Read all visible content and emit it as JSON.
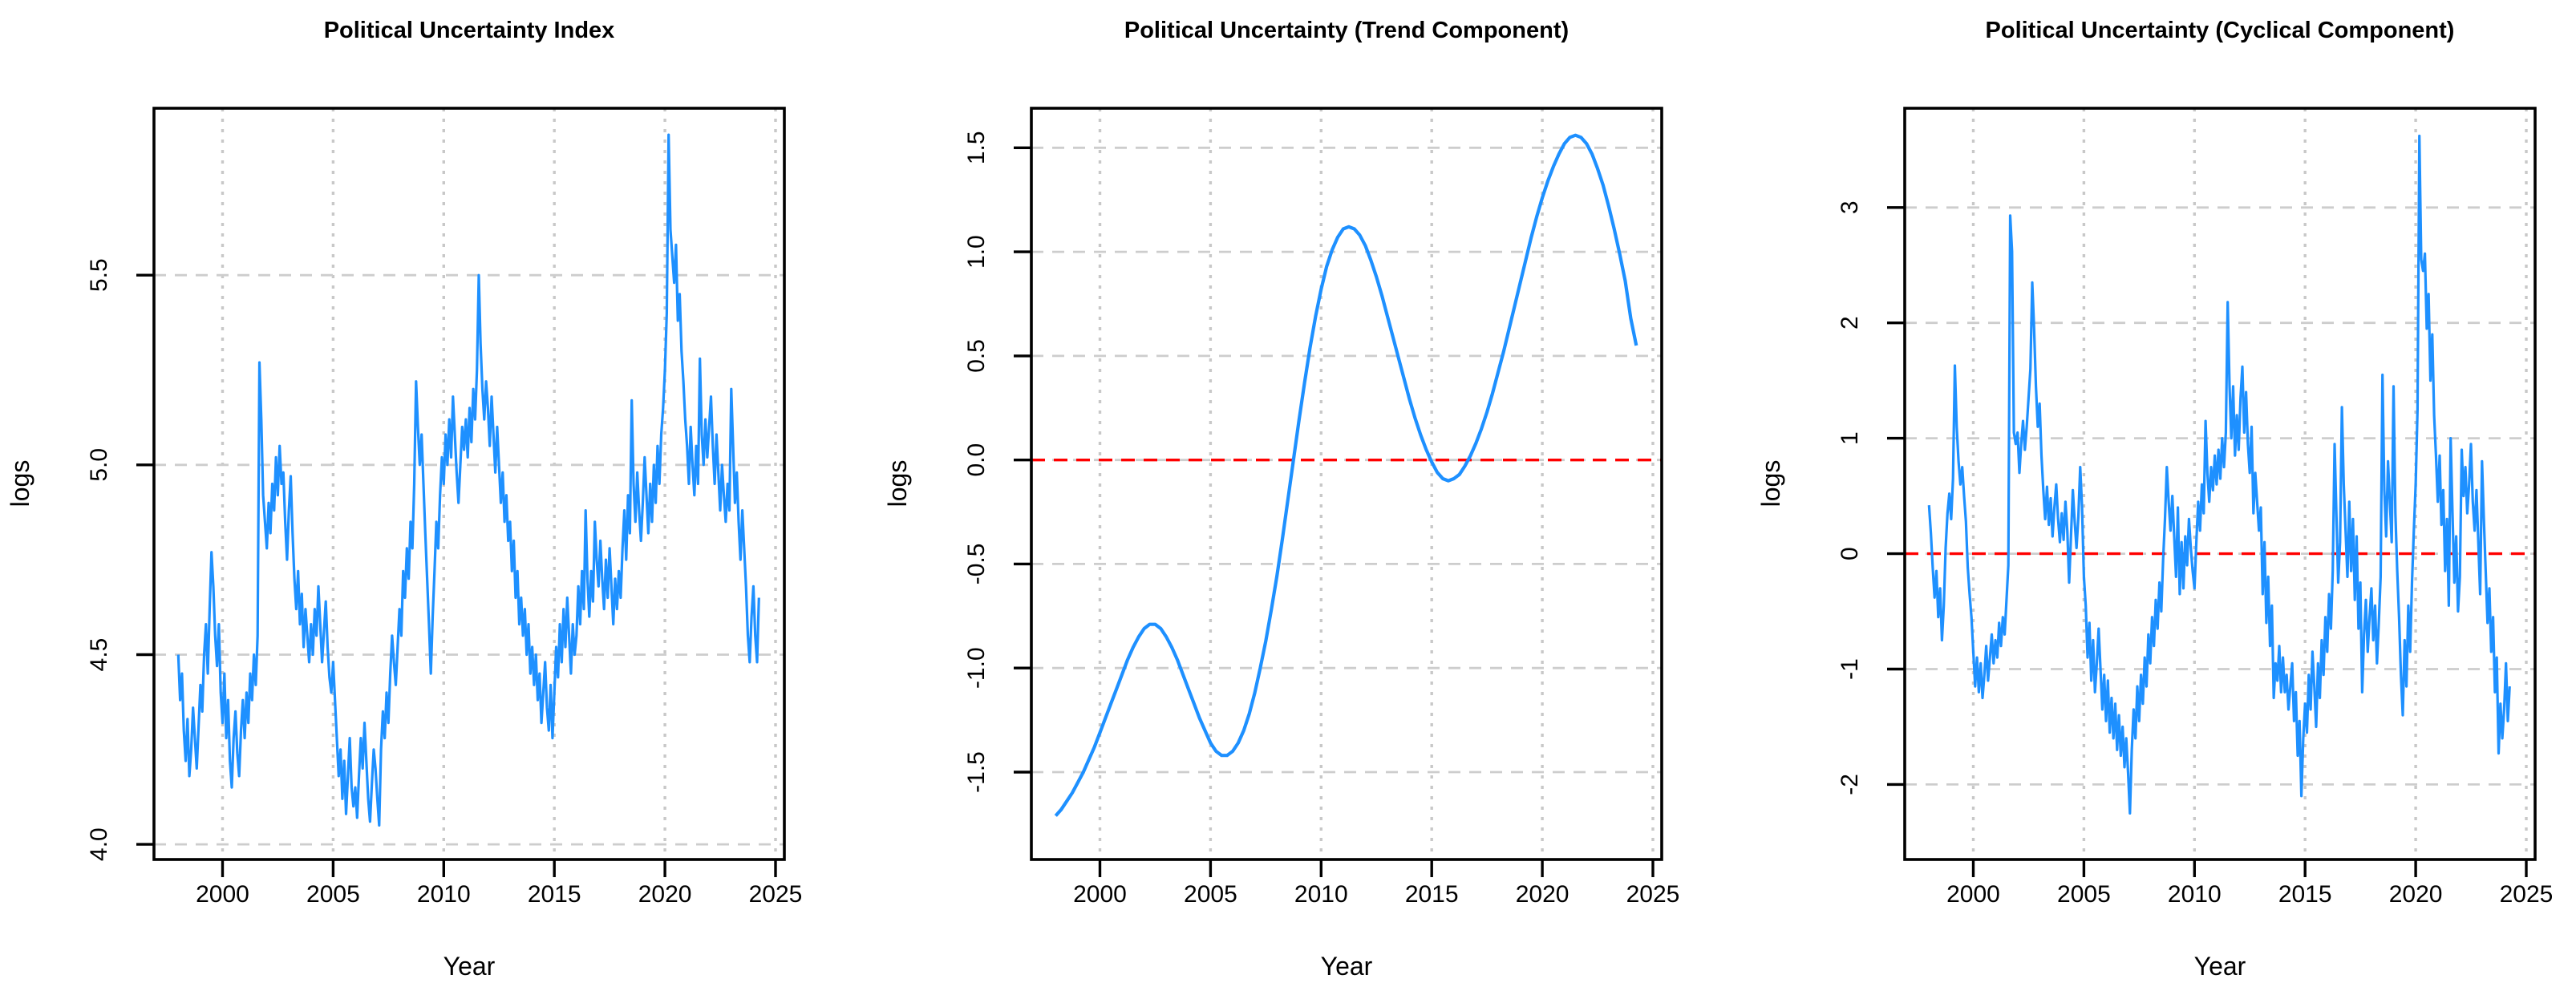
{
  "figure": {
    "background": "#ffffff",
    "description_titles": [
      "Political Uncertainty Index",
      "Political Uncertainty (Trend Component)",
      "Political Uncertainty (Cyclical Component)"
    ]
  },
  "chart_data": [
    {
      "type": "line",
      "title": "Political Uncertainty Index",
      "xlabel": "Year",
      "ylabel": "logs",
      "x_ticks": [
        "2000",
        "2005",
        "2010",
        "2015",
        "2020",
        "2025"
      ],
      "y_ticks": [
        "4.0",
        "4.5",
        "5.0",
        "5.5"
      ],
      "xlim": [
        1996.9,
        2025.4
      ],
      "ylim": [
        3.96,
        5.94
      ],
      "grid": true,
      "legend": "none",
      "line_color": "#1E90FF",
      "zero_line": {
        "show": false,
        "color": "#ff0000"
      },
      "series": [
        {
          "id": "index",
          "x_start": 1998.0,
          "x_step": 0.0833333,
          "line_width": 3.2,
          "values": [
            4.5,
            4.38,
            4.45,
            4.3,
            4.22,
            4.33,
            4.18,
            4.25,
            4.36,
            4.28,
            4.2,
            4.31,
            4.42,
            4.35,
            4.5,
            4.58,
            4.45,
            4.62,
            4.77,
            4.68,
            4.55,
            4.47,
            4.58,
            4.4,
            4.32,
            4.45,
            4.28,
            4.38,
            4.22,
            4.15,
            4.28,
            4.35,
            4.24,
            4.18,
            4.3,
            4.38,
            4.28,
            4.4,
            4.32,
            4.45,
            4.38,
            4.5,
            4.42,
            4.55,
            5.27,
            5.12,
            4.92,
            4.85,
            4.78,
            4.9,
            4.82,
            4.95,
            4.88,
            5.02,
            4.92,
            5.05,
            4.95,
            4.98,
            4.85,
            4.75,
            4.88,
            4.97,
            4.82,
            4.7,
            4.62,
            4.72,
            4.58,
            4.66,
            4.52,
            4.62,
            4.55,
            4.48,
            4.58,
            4.5,
            4.62,
            4.55,
            4.68,
            4.58,
            4.48,
            4.56,
            4.64,
            4.52,
            4.44,
            4.4,
            4.48,
            4.38,
            4.28,
            4.18,
            4.25,
            4.12,
            4.22,
            4.08,
            4.18,
            4.28,
            4.15,
            4.1,
            4.15,
            4.07,
            4.18,
            4.28,
            4.2,
            4.32,
            4.22,
            4.12,
            4.06,
            4.16,
            4.25,
            4.2,
            4.12,
            4.05,
            4.25,
            4.35,
            4.28,
            4.4,
            4.32,
            4.45,
            4.55,
            4.48,
            4.42,
            4.52,
            4.62,
            4.55,
            4.72,
            4.65,
            4.78,
            4.7,
            4.85,
            4.78,
            4.95,
            5.22,
            5.1,
            5.0,
            5.08,
            4.95,
            4.82,
            4.7,
            4.58,
            4.45,
            4.6,
            4.72,
            4.85,
            4.78,
            4.92,
            5.02,
            4.95,
            5.08,
            5.0,
            5.12,
            5.02,
            5.18,
            5.08,
            4.98,
            4.9,
            5.0,
            5.1,
            5.04,
            5.12,
            5.02,
            5.15,
            5.06,
            5.2,
            5.12,
            5.25,
            5.5,
            5.32,
            5.2,
            5.12,
            5.22,
            5.15,
            5.05,
            5.18,
            5.08,
            4.98,
            5.1,
            5.0,
            4.9,
            4.98,
            4.85,
            4.92,
            4.8,
            4.85,
            4.72,
            4.8,
            4.65,
            4.72,
            4.58,
            4.65,
            4.55,
            4.62,
            4.5,
            4.58,
            4.45,
            4.52,
            4.42,
            4.5,
            4.38,
            4.45,
            4.32,
            4.4,
            4.48,
            4.36,
            4.3,
            4.42,
            4.28,
            4.4,
            4.52,
            4.44,
            4.58,
            4.48,
            4.62,
            4.52,
            4.65,
            4.55,
            4.45,
            4.58,
            4.5,
            4.55,
            4.68,
            4.58,
            4.72,
            4.62,
            4.88,
            4.7,
            4.6,
            4.72,
            4.64,
            4.85,
            4.75,
            4.68,
            4.8,
            4.7,
            4.62,
            4.75,
            4.65,
            4.78,
            4.68,
            4.58,
            4.7,
            4.62,
            4.72,
            4.65,
            4.78,
            4.88,
            4.75,
            4.92,
            4.82,
            5.17,
            4.95,
            4.85,
            4.98,
            4.88,
            4.8,
            4.9,
            5.02,
            4.92,
            4.82,
            4.95,
            4.85,
            5.0,
            4.9,
            5.05,
            4.95,
            5.08,
            5.15,
            5.25,
            5.4,
            5.87,
            5.62,
            5.55,
            5.48,
            5.58,
            5.38,
            5.45,
            5.3,
            5.22,
            5.12,
            5.05,
            4.95,
            5.1,
            5.0,
            4.92,
            5.05,
            4.95,
            5.28,
            5.08,
            5.0,
            5.12,
            5.02,
            5.1,
            5.18,
            5.05,
            4.95,
            5.08,
            4.98,
            4.88,
            5.0,
            4.92,
            4.85,
            4.95,
            4.88,
            5.2,
            5.05,
            4.9,
            4.98,
            4.85,
            4.75,
            4.88,
            4.78,
            4.68,
            4.55,
            4.48,
            4.6,
            4.68,
            4.55,
            4.48,
            4.65
          ]
        }
      ]
    },
    {
      "type": "line",
      "title": "Political Uncertainty (Trend Component)",
      "xlabel": "Year",
      "ylabel": "logs",
      "x_ticks": [
        "2000",
        "2005",
        "2010",
        "2015",
        "2020",
        "2025"
      ],
      "y_ticks": [
        "1.5",
        "1.0",
        "0.5",
        "0.0",
        "-0.5",
        "-1.0",
        "-1.5"
      ],
      "xlim": [
        1996.9,
        2025.4
      ],
      "ylim": [
        -1.92,
        1.69
      ],
      "grid": true,
      "legend": "none",
      "line_color": "#1E90FF",
      "zero_line": {
        "show": true,
        "color": "#ff0000"
      },
      "series": [
        {
          "id": "trend",
          "x_start": 1998.0,
          "x_step": 0.25,
          "line_width": 4.2,
          "values": [
            -1.71,
            -1.68,
            -1.64,
            -1.6,
            -1.55,
            -1.5,
            -1.44,
            -1.38,
            -1.31,
            -1.24,
            -1.17,
            -1.1,
            -1.03,
            -0.96,
            -0.9,
            -0.85,
            -0.81,
            -0.79,
            -0.79,
            -0.81,
            -0.85,
            -0.9,
            -0.96,
            -1.03,
            -1.1,
            -1.17,
            -1.24,
            -1.3,
            -1.36,
            -1.4,
            -1.42,
            -1.42,
            -1.4,
            -1.36,
            -1.3,
            -1.22,
            -1.12,
            -1.0,
            -0.87,
            -0.72,
            -0.56,
            -0.38,
            -0.19,
            0.0,
            0.19,
            0.37,
            0.54,
            0.69,
            0.82,
            0.93,
            1.01,
            1.07,
            1.11,
            1.12,
            1.11,
            1.08,
            1.03,
            0.96,
            0.88,
            0.79,
            0.69,
            0.59,
            0.49,
            0.39,
            0.29,
            0.2,
            0.12,
            0.05,
            -0.01,
            -0.06,
            -0.09,
            -0.1,
            -0.09,
            -0.07,
            -0.03,
            0.02,
            0.08,
            0.15,
            0.23,
            0.32,
            0.42,
            0.52,
            0.63,
            0.74,
            0.85,
            0.96,
            1.07,
            1.17,
            1.26,
            1.34,
            1.41,
            1.47,
            1.52,
            1.55,
            1.56,
            1.55,
            1.52,
            1.47,
            1.4,
            1.32,
            1.22,
            1.11,
            0.99,
            0.86,
            0.68,
            0.55
          ]
        }
      ]
    },
    {
      "type": "line",
      "title": "Political Uncertainty (Cyclical Component)",
      "xlabel": "Year",
      "ylabel": "logs",
      "x_ticks": [
        "2000",
        "2005",
        "2010",
        "2015",
        "2020",
        "2025"
      ],
      "y_ticks": [
        "3",
        "2",
        "1",
        "0",
        "-1",
        "-2"
      ],
      "xlim": [
        1996.9,
        2025.4
      ],
      "ylim": [
        -2.65,
        3.86
      ],
      "grid": true,
      "legend": "none",
      "line_color": "#1E90FF",
      "zero_line": {
        "show": true,
        "color": "#ff0000"
      },
      "series": [
        {
          "id": "cycle",
          "x_start": 1998.0,
          "x_step": 0.0833333,
          "line_width": 3.2,
          "values": [
            0.42,
            0.18,
            -0.12,
            -0.38,
            -0.15,
            -0.55,
            -0.3,
            -0.75,
            -0.45,
            0.05,
            0.35,
            0.52,
            0.3,
            0.65,
            1.63,
            1.1,
            0.8,
            0.6,
            0.75,
            0.5,
            0.28,
            -0.12,
            -0.35,
            -0.55,
            -0.85,
            -1.15,
            -0.9,
            -1.2,
            -0.95,
            -1.25,
            -1.05,
            -0.8,
            -1.1,
            -0.9,
            -0.7,
            -0.95,
            -0.75,
            -0.9,
            -0.6,
            -0.8,
            -0.55,
            -0.7,
            -0.4,
            -0.1,
            2.93,
            2.62,
            1.05,
            0.95,
            1.05,
            0.7,
            0.95,
            1.15,
            0.9,
            1.1,
            1.35,
            1.6,
            2.35,
            1.95,
            1.45,
            1.1,
            1.3,
            0.85,
            0.55,
            0.3,
            0.58,
            0.25,
            0.48,
            0.15,
            0.4,
            0.6,
            0.3,
            0.1,
            0.35,
            0.12,
            0.45,
            0.2,
            -0.25,
            0.15,
            0.55,
            0.28,
            0.05,
            0.32,
            0.75,
            0.4,
            -0.2,
            -0.45,
            -0.9,
            -0.6,
            -1.1,
            -0.75,
            -1.2,
            -0.95,
            -0.65,
            -1.0,
            -1.35,
            -1.05,
            -1.45,
            -1.1,
            -1.55,
            -1.25,
            -1.6,
            -1.3,
            -1.7,
            -1.4,
            -1.75,
            -1.5,
            -1.85,
            -1.6,
            -1.9,
            -2.25,
            -1.7,
            -1.35,
            -1.6,
            -1.15,
            -1.45,
            -1.05,
            -1.3,
            -0.9,
            -1.15,
            -0.7,
            -0.95,
            -0.55,
            -0.8,
            -0.4,
            -0.65,
            -0.25,
            -0.5,
            -0.05,
            0.3,
            0.75,
            0.45,
            0.2,
            0.5,
            0.15,
            -0.2,
            0.4,
            -0.35,
            0.1,
            -0.3,
            0.15,
            -0.1,
            0.3,
            0.05,
            -0.15,
            -0.3,
            0.1,
            0.45,
            0.2,
            0.6,
            0.35,
            1.15,
            0.7,
            0.45,
            0.75,
            0.55,
            0.85,
            0.6,
            0.9,
            0.65,
            1.0,
            0.75,
            1.05,
            2.18,
            1.45,
            1.0,
            1.45,
            0.85,
            1.2,
            0.9,
            1.35,
            1.62,
            1.05,
            1.4,
            0.95,
            0.7,
            1.1,
            0.35,
            0.7,
            0.45,
            0.2,
            0.4,
            -0.35,
            0.1,
            -0.6,
            -0.2,
            -0.8,
            -0.45,
            -1.25,
            -0.95,
            -1.1,
            -0.8,
            -1.2,
            -0.9,
            -1.2,
            -1.05,
            -1.35,
            -1.15,
            -0.95,
            -1.45,
            -1.2,
            -1.75,
            -1.45,
            -2.1,
            -1.6,
            -1.3,
            -1.55,
            -1.05,
            -1.35,
            -0.85,
            -1.15,
            -1.5,
            -0.95,
            -1.25,
            -0.75,
            -1.05,
            -0.55,
            -0.85,
            -0.35,
            -0.65,
            -0.15,
            0.95,
            0.35,
            -0.25,
            0.1,
            1.27,
            0.6,
            0.2,
            -0.2,
            0.45,
            -0.15,
            0.3,
            -0.4,
            0.15,
            -0.65,
            -0.25,
            -1.2,
            -0.7,
            -0.4,
            -0.85,
            -0.55,
            -0.3,
            -0.75,
            -0.45,
            -0.95,
            -0.6,
            -0.2,
            1.55,
            0.55,
            0.15,
            0.8,
            0.45,
            0.1,
            1.45,
            0.35,
            -0.15,
            -0.55,
            -1.05,
            -1.4,
            -0.75,
            -1.15,
            -0.45,
            -0.85,
            -0.25,
            0.2,
            0.6,
            1.25,
            3.62,
            2.55,
            2.45,
            2.6,
            1.95,
            2.25,
            1.5,
            1.9,
            1.2,
            0.85,
            0.45,
            0.85,
            0.25,
            0.55,
            -0.15,
            0.3,
            -0.45,
            1.0,
            0.35,
            -0.25,
            0.15,
            -0.5,
            -0.2,
            0.9,
            0.5,
            0.75,
            0.35,
            0.6,
            0.95,
            0.45,
            0.2,
            0.55,
            0.1,
            -0.35,
            0.8,
            0.3,
            -0.15,
            -0.6,
            -0.3,
            -0.85,
            -0.55,
            -1.2,
            -0.9,
            -1.73,
            -1.3,
            -1.6,
            -1.35,
            -0.95,
            -1.45,
            -1.15
          ]
        }
      ]
    }
  ]
}
